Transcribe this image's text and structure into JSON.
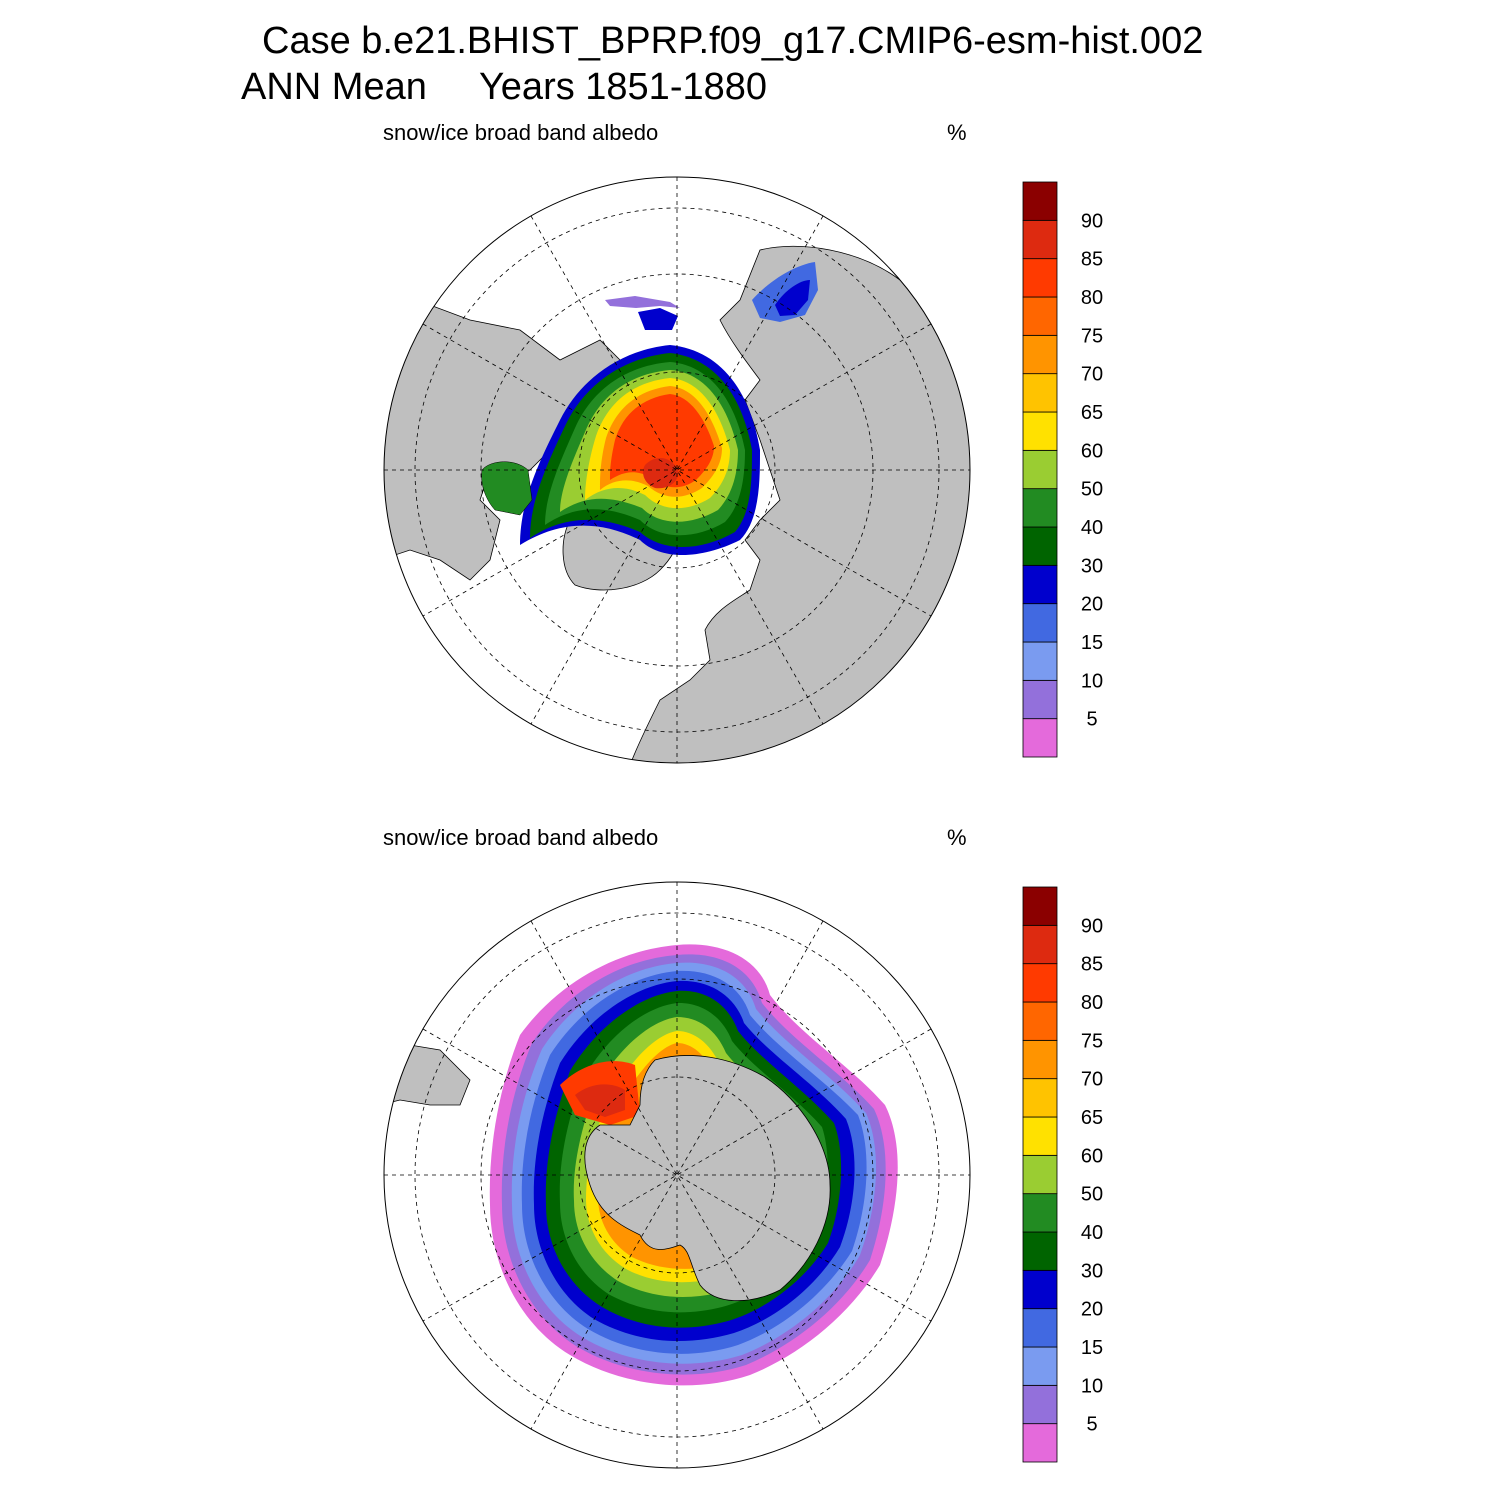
{
  "title": {
    "line1": "Case b.e21.BHIST_BPRP.f09_g17.CMIP6-esm-hist.002",
    "line2": "ANN Mean     Years 1851-1880"
  },
  "panels": [
    {
      "id": "nh",
      "left_label": "snow/ice broad band albedo",
      "right_label": "%"
    },
    {
      "id": "sh",
      "left_label": "snow/ice broad band albedo",
      "right_label": "%"
    }
  ],
  "colorbar": {
    "colors": [
      "#E46ADB",
      "#9370DB",
      "#7A9BF0",
      "#4169E1",
      "#0000CD",
      "#006400",
      "#228B22",
      "#9ACD32",
      "#FFE100",
      "#FFC300",
      "#FF9400",
      "#FF6600",
      "#FF3A00",
      "#DD2A10",
      "#8B0000"
    ],
    "labels": [
      "5",
      "10",
      "15",
      "20",
      "30",
      "40",
      "50",
      "60",
      "65",
      "70",
      "75",
      "80",
      "85",
      "90"
    ]
  },
  "map_colors": {
    "land": "#BFBFBF",
    "ocean": "#FFFFFF"
  }
}
